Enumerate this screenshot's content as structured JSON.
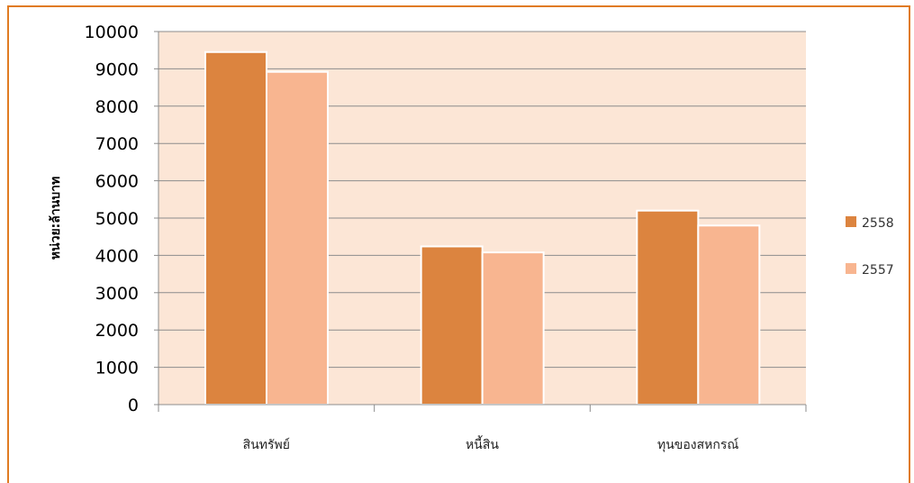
{
  "chart_data": {
    "type": "bar",
    "categories": [
      "สินทรัพย์",
      "หนี้สิน",
      "ทุนของสหกรณ์"
    ],
    "series": [
      {
        "name": "2558",
        "values": [
          9450,
          4240,
          5200
        ],
        "color": "#dc843f"
      },
      {
        "name": "2557",
        "values": [
          8920,
          4080,
          4800
        ],
        "color": "#f8b590"
      }
    ],
    "title": "",
    "xlabel": "",
    "ylabel": "หน่วย:ล้านบาท",
    "ylim": [
      0,
      10000
    ],
    "yticks": [
      0,
      1000,
      2000,
      3000,
      4000,
      5000,
      6000,
      7000,
      8000,
      9000,
      10000
    ],
    "grid": true,
    "legend": "right",
    "colors": {
      "plot_background": "#fce6d6",
      "grid": "#8c8c8c",
      "frame_border": "#e07b22"
    }
  }
}
